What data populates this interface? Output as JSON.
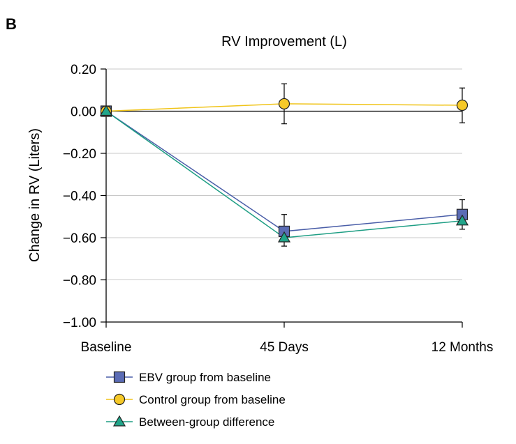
{
  "panel_label": "B",
  "chart_data": {
    "type": "line",
    "title": "RV Improvement (L)",
    "xlabel": "",
    "ylabel": "Change in RV (Liters)",
    "categories": [
      "Baseline",
      "45 Days",
      "12 Months"
    ],
    "ylim": [
      -1.0,
      0.2
    ],
    "yticks": [
      0.2,
      0.0,
      -0.2,
      -0.4,
      -0.6,
      -0.8,
      -1.0
    ],
    "ytick_labels": [
      "0.20",
      "0.00",
      "−0.20",
      "−0.40",
      "−0.60",
      "−0.80",
      "−1.00"
    ],
    "grid": true,
    "zero_line": true,
    "legend_position": "bottom-left",
    "series": [
      {
        "name": "EBV group from baseline",
        "marker": "square",
        "color": "#4a5ea8",
        "fill": "#5b6cb5",
        "values": [
          0.0,
          -0.57,
          -0.49
        ],
        "err_low": [
          null,
          -0.64,
          -0.56
        ],
        "err_high": [
          null,
          -0.49,
          -0.42
        ]
      },
      {
        "name": "Control group from baseline",
        "marker": "circle",
        "color": "#f0c419",
        "fill": "#f6c928",
        "values": [
          0.0,
          0.035,
          0.028
        ],
        "err_low": [
          null,
          -0.06,
          -0.055
        ],
        "err_high": [
          null,
          0.13,
          0.11
        ]
      },
      {
        "name": "Between-group difference",
        "marker": "triangle",
        "color": "#1e9e84",
        "fill": "#22a58a",
        "values": [
          0.0,
          -0.6,
          -0.52
        ],
        "err_low": [
          null,
          null,
          null
        ],
        "err_high": [
          null,
          null,
          null
        ]
      }
    ]
  }
}
